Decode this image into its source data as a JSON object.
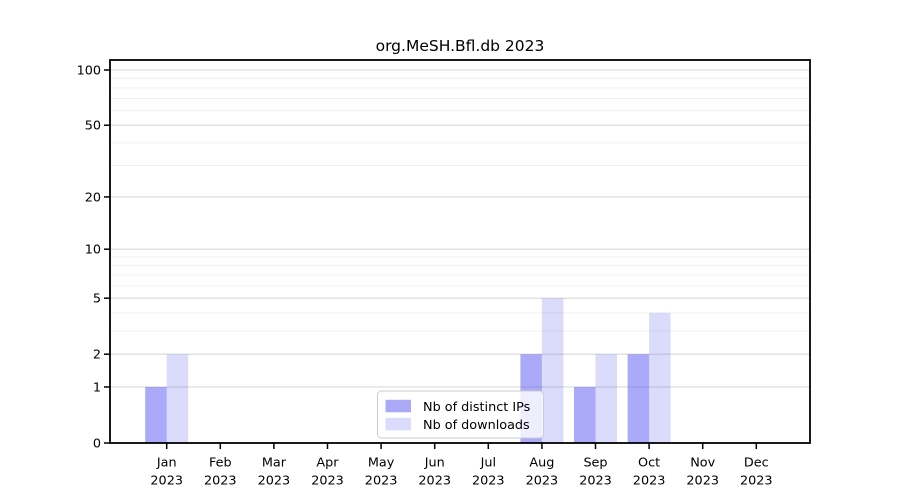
{
  "chart_data": {
    "type": "bar",
    "title": "org.MeSH.Bfl.db 2023",
    "categories": [
      "Jan",
      "Feb",
      "Mar",
      "Apr",
      "May",
      "Jun",
      "Jul",
      "Aug",
      "Sep",
      "Oct",
      "Nov",
      "Dec"
    ],
    "x_year_label": "2023",
    "series": [
      {
        "name": "Nb of distinct IPs",
        "color": "rgba(85,85,241,0.5)",
        "values": [
          1,
          0,
          0,
          0,
          0,
          0,
          0,
          2,
          1,
          2,
          0,
          0
        ]
      },
      {
        "name": "Nb of downloads",
        "color": "rgba(85,85,241,0.21)",
        "values": [
          2,
          0,
          0,
          0,
          0,
          0,
          0,
          5,
          2,
          4,
          0,
          0
        ]
      }
    ],
    "yscale": "log1p",
    "ylim": [
      0,
      113
    ],
    "yticks_major": [
      0,
      1,
      2,
      5,
      10,
      20,
      50,
      100
    ],
    "yticks_minor": [
      3,
      4,
      6,
      7,
      8,
      9,
      30,
      40,
      60,
      70,
      80,
      90
    ],
    "grid": "both",
    "legend_position": "lower center (inside plot)",
    "colors": {
      "bar_distinct_ips_rendered": "#aaaaf8",
      "bar_downloads_rendered": "#dbdbf8",
      "grid_major": "#d9d9d9",
      "grid_minor": "#f0f0f0",
      "spine": "#000000",
      "legend_border": "#cccccc"
    }
  }
}
